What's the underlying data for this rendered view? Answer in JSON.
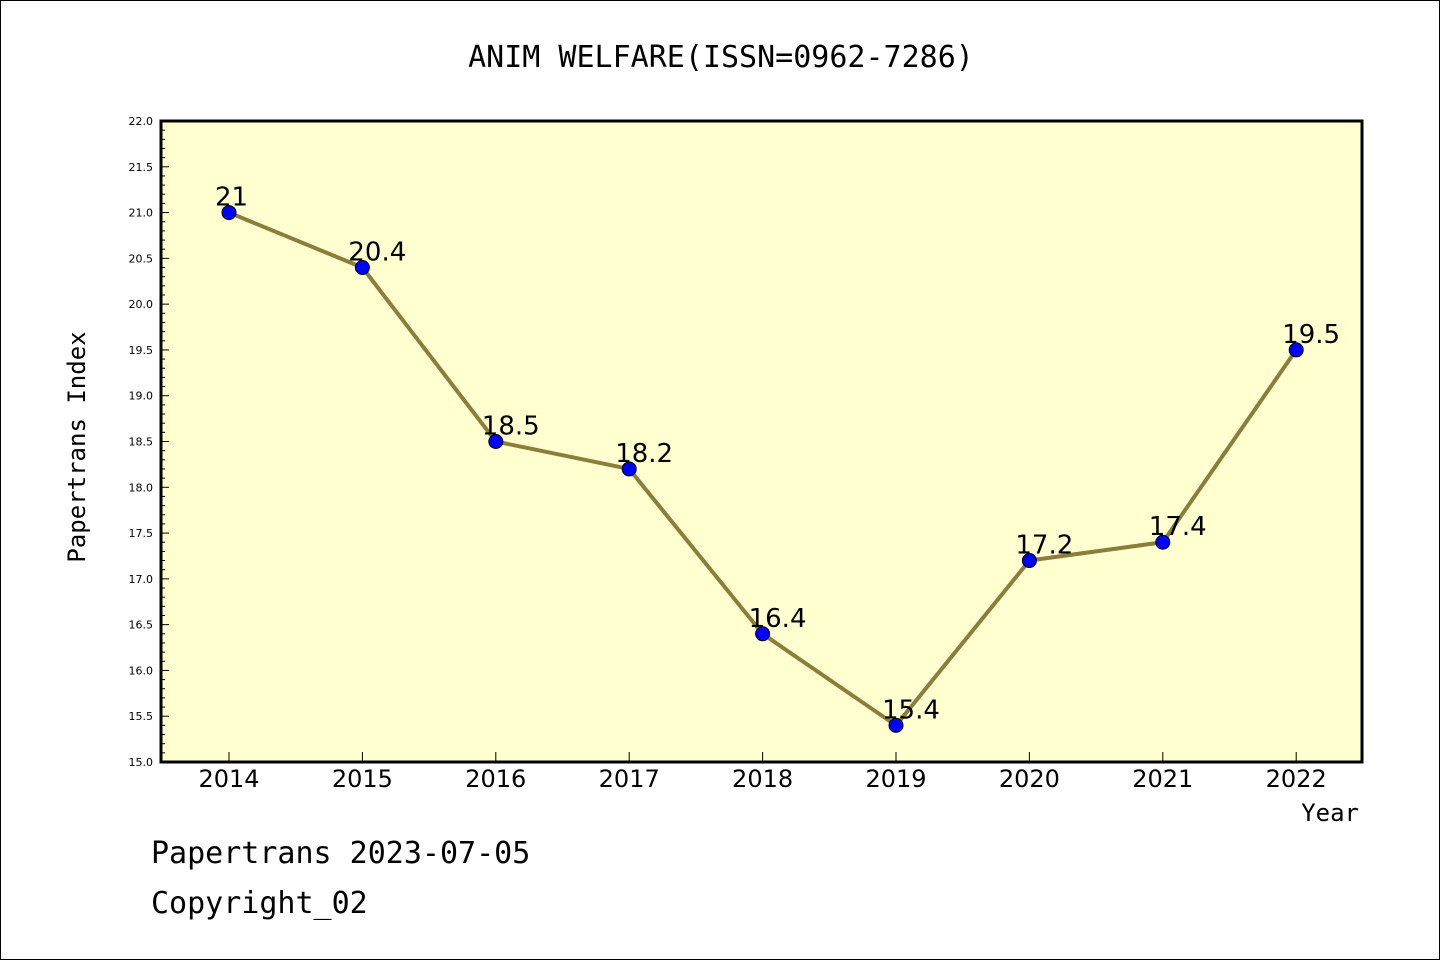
{
  "chart_data": {
    "type": "line",
    "title": "ANIM WELFARE(ISSN=0962-7286)",
    "xlabel": "Year",
    "ylabel": "Papertrans Index",
    "categories": [
      "2014",
      "2015",
      "2016",
      "2017",
      "2018",
      "2019",
      "2020",
      "2021",
      "2022"
    ],
    "series": [
      {
        "values": [
          21,
          20.4,
          18.5,
          18.2,
          16.4,
          15.4,
          17.2,
          17.4,
          19.5
        ]
      }
    ],
    "data_labels": [
      "21",
      "20.4",
      "18.5",
      "18.2",
      "16.4",
      "15.4",
      "17.2",
      "17.4",
      "19.5"
    ],
    "ylim": [
      15.0,
      22.0
    ],
    "yticks": [
      "15.0",
      "15.5",
      "16.0",
      "16.5",
      "17.0",
      "17.5",
      "18.0",
      "18.5",
      "19.0",
      "19.5",
      "20.0",
      "20.5",
      "21.0",
      "21.5",
      "22.0"
    ],
    "grid": false,
    "colors": {
      "plot_background": "#ffffd0",
      "line": "#8b7d3a",
      "marker": "#0000ff"
    }
  },
  "footer": {
    "line1": "Papertrans 2023-07-05",
    "line2": "Copyright_02"
  }
}
